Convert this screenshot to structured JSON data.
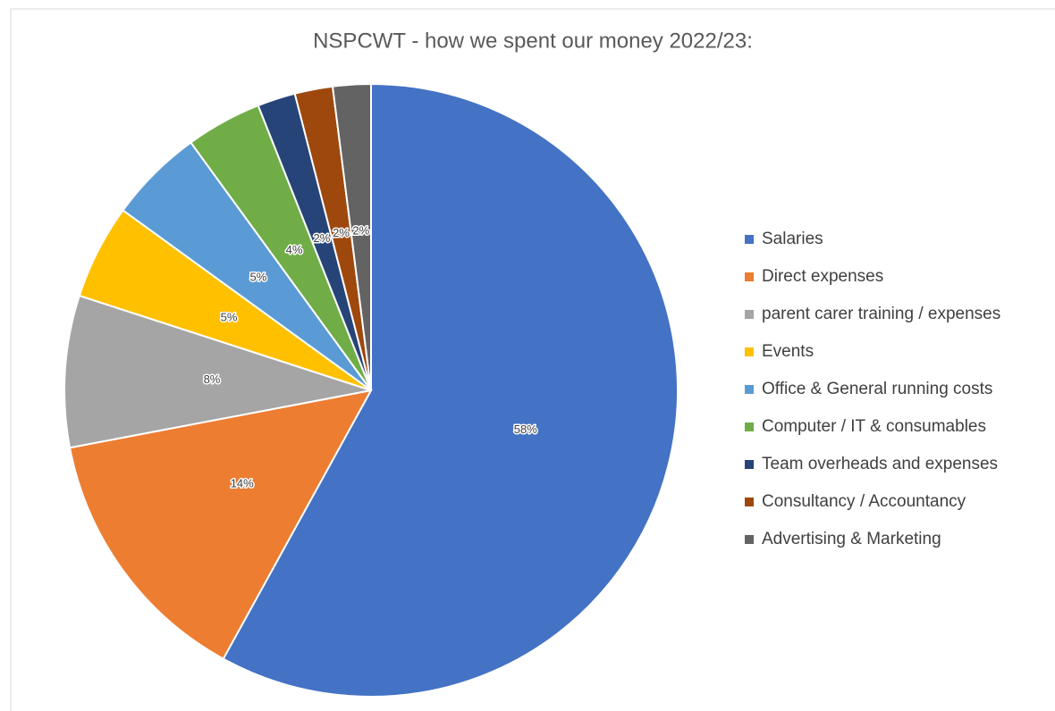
{
  "chart_data": {
    "type": "pie",
    "title": "NSPCWT - how we spent our money 2022/23:",
    "categories": [
      "Salaries",
      "Direct expenses",
      "parent carer training / expenses",
      "Events",
      "Office & General running costs",
      "Computer / IT & consumables",
      "Team overheads and expenses",
      "Consultancy / Accountancy",
      "Advertising & Marketing"
    ],
    "values": [
      58,
      14,
      8,
      5,
      5,
      4,
      2,
      2,
      2
    ],
    "value_labels": [
      "58%",
      "14%",
      "8%",
      "5%",
      "5%",
      "4%",
      "2%",
      "2%",
      "2%"
    ],
    "colors": [
      "#4472c4",
      "#ed7d31",
      "#a5a5a5",
      "#ffc000",
      "#5b9bd5",
      "#70ad47",
      "#264478",
      "#9e480e",
      "#636363"
    ],
    "legend": "right"
  }
}
